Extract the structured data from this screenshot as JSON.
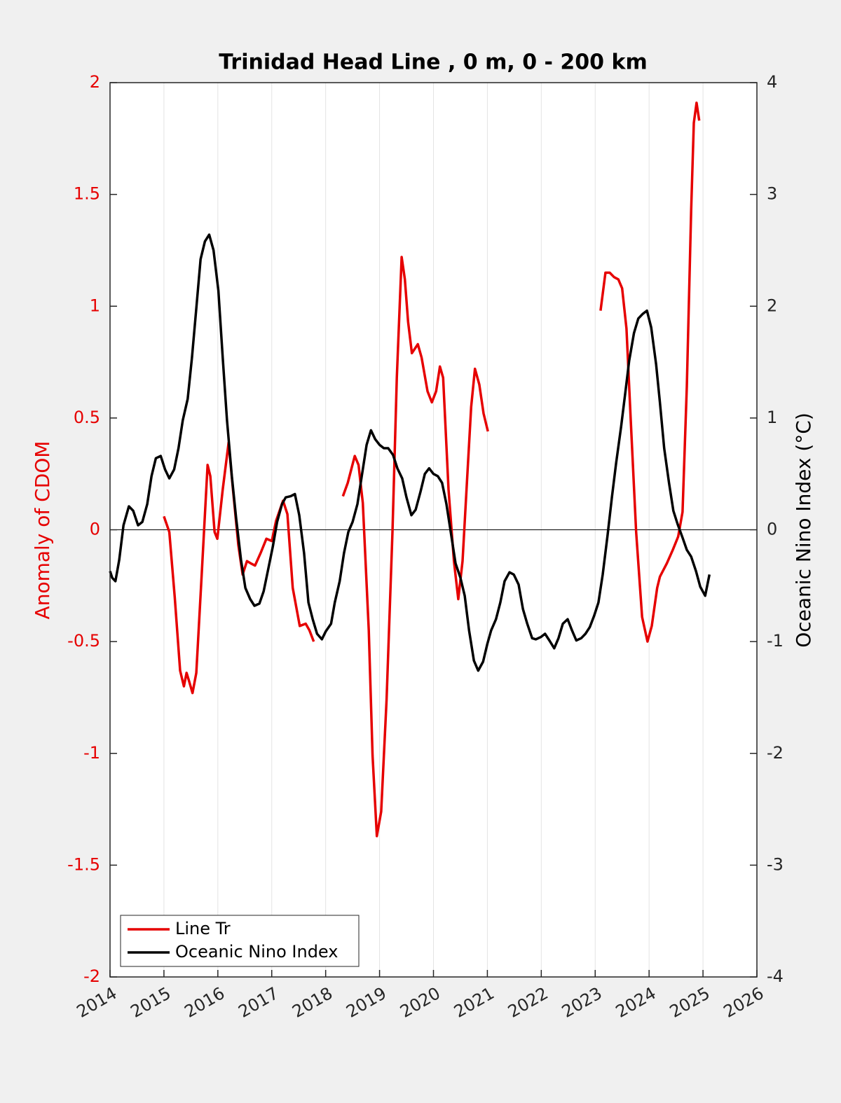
{
  "chart_data": {
    "type": "line",
    "title": "Trinidad Head Line , 0 m, 0 - 200 km",
    "ylabel": "Anomaly of CDOM",
    "y2label": "Oceanic Nino Index (°C)",
    "xlim": [
      2014,
      2026
    ],
    "xticks": [
      2014,
      2015,
      2016,
      2017,
      2018,
      2019,
      2020,
      2021,
      2022,
      2023,
      2024,
      2025,
      2026
    ],
    "ylim": [
      -2,
      2
    ],
    "yticks": [
      -2,
      -1.5,
      -1,
      -0.5,
      0,
      0.5,
      1,
      1.5,
      2
    ],
    "y2lim": [
      -4,
      4
    ],
    "y2ticks": [
      -4,
      -3,
      -2,
      -1,
      0,
      1,
      2,
      3,
      4
    ],
    "grid": "x",
    "legend": "lower left",
    "series": [
      {
        "name": "Line Tr",
        "color": "#e60000",
        "axis": "y",
        "x": [
          2015.0,
          2015.1,
          2015.2,
          2015.3,
          2015.37,
          2015.42,
          2015.47,
          2015.53,
          2015.6,
          2015.7,
          2015.81,
          2015.86,
          2015.94,
          2015.99,
          2016.09,
          2016.2,
          2016.28,
          2016.38,
          2016.46,
          2016.54,
          2016.61,
          2016.69,
          2016.8,
          2016.9,
          2017.0,
          2017.08,
          2017.21,
          2017.29,
          2017.39,
          2017.52,
          2017.63,
          2017.7,
          2017.78,
          2018.05,
          2018.32,
          2018.41,
          2018.54,
          2018.61,
          2018.69,
          2018.8,
          2018.87,
          2018.95,
          2019.03,
          2019.13,
          2019.24,
          2019.32,
          2019.41,
          2019.47,
          2019.53,
          2019.6,
          2019.71,
          2019.78,
          2019.89,
          2019.97,
          2020.05,
          2020.12,
          2020.18,
          2020.28,
          2020.38,
          2020.46,
          2020.54,
          2020.62,
          2020.7,
          2020.77,
          2020.85,
          2020.93,
          2021.01,
          2022.0,
          2023.1,
          2023.19,
          2023.27,
          2023.35,
          2023.43,
          2023.5,
          2023.58,
          2023.66,
          2023.76,
          2023.87,
          2023.97,
          2024.05,
          2024.15,
          2024.2,
          2024.33,
          2024.44,
          2024.54,
          2024.62,
          2024.7,
          2024.78,
          2024.83,
          2024.88,
          2024.93
        ],
        "values": [
          0.06,
          -0.01,
          -0.3,
          -0.63,
          -0.7,
          -0.64,
          -0.68,
          -0.73,
          -0.64,
          -0.2,
          0.29,
          0.24,
          -0.01,
          -0.04,
          0.18,
          0.39,
          0.18,
          -0.07,
          -0.2,
          -0.14,
          -0.15,
          -0.16,
          -0.1,
          -0.04,
          -0.05,
          0.04,
          0.13,
          0.07,
          -0.26,
          -0.43,
          -0.42,
          -0.45,
          -0.5,
          null,
          0.15,
          0.21,
          0.33,
          0.29,
          0.12,
          -0.45,
          -1.01,
          -1.37,
          -1.26,
          -0.76,
          -0.01,
          0.68,
          1.22,
          1.12,
          0.93,
          0.79,
          0.83,
          0.77,
          0.62,
          0.57,
          0.62,
          0.73,
          0.68,
          0.18,
          -0.14,
          -0.31,
          -0.14,
          0.21,
          0.55,
          0.72,
          0.65,
          0.52,
          0.44,
          null,
          0.98,
          1.15,
          1.15,
          1.13,
          1.12,
          1.08,
          0.9,
          0.49,
          -0.01,
          -0.39,
          -0.5,
          -0.43,
          -0.26,
          -0.21,
          -0.15,
          -0.09,
          -0.03,
          0.08,
          0.64,
          1.43,
          1.82,
          1.91,
          1.83
        ]
      },
      {
        "name": "Oceanic Nino Index",
        "color": "#000000",
        "axis": "y2",
        "x": [
          2014.0,
          2014.04,
          2014.1,
          2014.17,
          2014.25,
          2014.35,
          2014.43,
          2014.52,
          2014.6,
          2014.69,
          2014.77,
          2014.85,
          2014.94,
          2015.02,
          2015.1,
          2015.19,
          2015.27,
          2015.35,
          2015.44,
          2015.52,
          2015.6,
          2015.68,
          2015.76,
          2015.84,
          2015.92,
          2016.01,
          2016.09,
          2016.17,
          2016.26,
          2016.34,
          2016.43,
          2016.51,
          2016.6,
          2016.68,
          2016.77,
          2016.85,
          2016.94,
          2017.02,
          2017.1,
          2017.19,
          2017.26,
          2017.35,
          2017.43,
          2017.51,
          2017.6,
          2017.68,
          2017.76,
          2017.84,
          2017.93,
          2018.0,
          2018.1,
          2018.17,
          2018.26,
          2018.34,
          2018.42,
          2018.5,
          2018.59,
          2018.67,
          2018.76,
          2018.84,
          2018.92,
          2019.0,
          2019.08,
          2019.16,
          2019.25,
          2019.33,
          2019.42,
          2019.5,
          2019.59,
          2019.67,
          2019.76,
          2019.84,
          2019.92,
          2020.0,
          2020.08,
          2020.16,
          2020.24,
          2020.33,
          2020.41,
          2020.5,
          2020.58,
          2020.66,
          2020.75,
          2020.83,
          2020.92,
          2021.0,
          2021.07,
          2021.16,
          2021.24,
          2021.32,
          2021.41,
          2021.49,
          2021.58,
          2021.66,
          2021.74,
          2021.83,
          2021.9,
          2021.99,
          2022.07,
          2022.15,
          2022.24,
          2022.32,
          2022.4,
          2022.49,
          2022.57,
          2022.65,
          2022.74,
          2022.82,
          2022.9,
          2022.98,
          2023.06,
          2023.14,
          2023.23,
          2023.31,
          2023.39,
          2023.48,
          2023.56,
          2023.63,
          2023.72,
          2023.8,
          2023.88,
          2023.96,
          2024.04,
          2024.13,
          2024.2,
          2024.28,
          2024.37,
          2024.45,
          2024.53,
          2024.62,
          2024.7,
          2024.78,
          2024.87,
          2024.95,
          2025.04,
          2025.12
        ],
        "values": [
          -0.37,
          -0.43,
          -0.46,
          -0.27,
          0.04,
          0.21,
          0.17,
          0.04,
          0.07,
          0.23,
          0.48,
          0.64,
          0.66,
          0.54,
          0.46,
          0.54,
          0.73,
          0.98,
          1.17,
          1.54,
          1.98,
          2.42,
          2.58,
          2.64,
          2.5,
          2.14,
          1.54,
          0.98,
          0.48,
          0.1,
          -0.27,
          -0.52,
          -0.62,
          -0.68,
          -0.66,
          -0.55,
          -0.34,
          -0.15,
          0.07,
          0.23,
          0.29,
          0.3,
          0.32,
          0.13,
          -0.21,
          -0.65,
          -0.8,
          -0.93,
          -0.98,
          -0.91,
          -0.84,
          -0.65,
          -0.46,
          -0.21,
          -0.02,
          0.07,
          0.23,
          0.48,
          0.76,
          0.89,
          0.81,
          0.76,
          0.73,
          0.73,
          0.67,
          0.55,
          0.46,
          0.29,
          0.13,
          0.18,
          0.34,
          0.5,
          0.55,
          0.5,
          0.48,
          0.42,
          0.23,
          -0.05,
          -0.3,
          -0.43,
          -0.59,
          -0.9,
          -1.17,
          -1.26,
          -1.18,
          -1.02,
          -0.9,
          -0.8,
          -0.65,
          -0.46,
          -0.38,
          -0.4,
          -0.49,
          -0.71,
          -0.84,
          -0.97,
          -0.98,
          -0.96,
          -0.93,
          -0.99,
          -1.06,
          -0.97,
          -0.84,
          -0.8,
          -0.9,
          -0.99,
          -0.97,
          -0.93,
          -0.87,
          -0.77,
          -0.65,
          -0.4,
          -0.05,
          0.29,
          0.6,
          0.92,
          1.23,
          1.51,
          1.76,
          1.89,
          1.93,
          1.96,
          1.81,
          1.48,
          1.14,
          0.73,
          0.42,
          0.17,
          0.05,
          -0.07,
          -0.18,
          -0.24,
          -0.37,
          -0.51,
          -0.59,
          -0.4
        ]
      }
    ]
  }
}
